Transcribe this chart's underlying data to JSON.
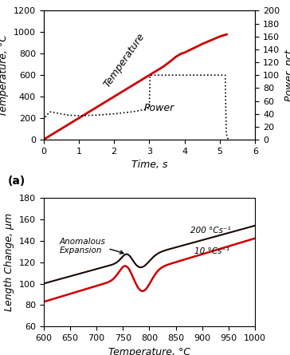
{
  "panel_a": {
    "temp_x": [
      0.0,
      0.2,
      0.5,
      1.0,
      1.5,
      2.0,
      2.5,
      3.0,
      3.2,
      3.4,
      3.6,
      3.75,
      3.85,
      3.9,
      4.0,
      4.5,
      5.0,
      5.2
    ],
    "temp_y": [
      0,
      40,
      100,
      200,
      300,
      400,
      500,
      600,
      640,
      680,
      730,
      770,
      790,
      800,
      810,
      890,
      960,
      980
    ],
    "power_x": [
      0.0,
      0.05,
      0.1,
      0.15,
      0.2,
      0.3,
      0.5,
      0.7,
      1.0,
      1.5,
      2.0,
      2.5,
      2.8,
      2.95,
      3.0,
      3.02,
      3.5,
      3.8,
      3.85,
      3.9,
      4.0,
      4.5,
      5.0,
      5.15,
      5.18,
      5.22,
      5.25
    ],
    "power_y": [
      30,
      35,
      38,
      42,
      43,
      42,
      40,
      38,
      37,
      38,
      40,
      43,
      46,
      48,
      50,
      100,
      100,
      100,
      100,
      100,
      100,
      100,
      100,
      100,
      10,
      2,
      0
    ],
    "xlim": [
      0,
      6
    ],
    "ylim_temp": [
      0,
      1200
    ],
    "ylim_power": [
      0,
      200
    ],
    "xlabel": "Time, s",
    "ylabel_left": "Temperature, °C",
    "ylabel_right": "Power, pct",
    "temp_label": "Temperature",
    "power_label": "Power",
    "temp_color": "#cc0000",
    "power_color": "#000000",
    "xticks": [
      0,
      1,
      2,
      3,
      4,
      5,
      6
    ],
    "yticks_temp": [
      0,
      200,
      400,
      600,
      800,
      1000,
      1200
    ],
    "yticks_power": [
      0,
      20,
      40,
      60,
      80,
      100,
      120,
      140,
      160,
      180,
      200
    ]
  },
  "panel_b": {
    "xlim": [
      600,
      1000
    ],
    "ylim": [
      60,
      180
    ],
    "xlabel": "Temperature, °C",
    "ylabel": "Length Change, μm",
    "label_200": "200 °Cs-1",
    "label_10": "10 °Cs-1",
    "anomalous_label": "Anomalous\nExpansion",
    "color_200": "#1a0800",
    "color_10": "#cc0000",
    "xticks": [
      600,
      650,
      700,
      750,
      800,
      850,
      900,
      950,
      1000
    ],
    "yticks": [
      60,
      80,
      100,
      120,
      140,
      160,
      180
    ]
  },
  "background_color": "#ffffff",
  "label_fontsize": 9,
  "tick_fontsize": 8,
  "panel_label_fontsize": 10
}
